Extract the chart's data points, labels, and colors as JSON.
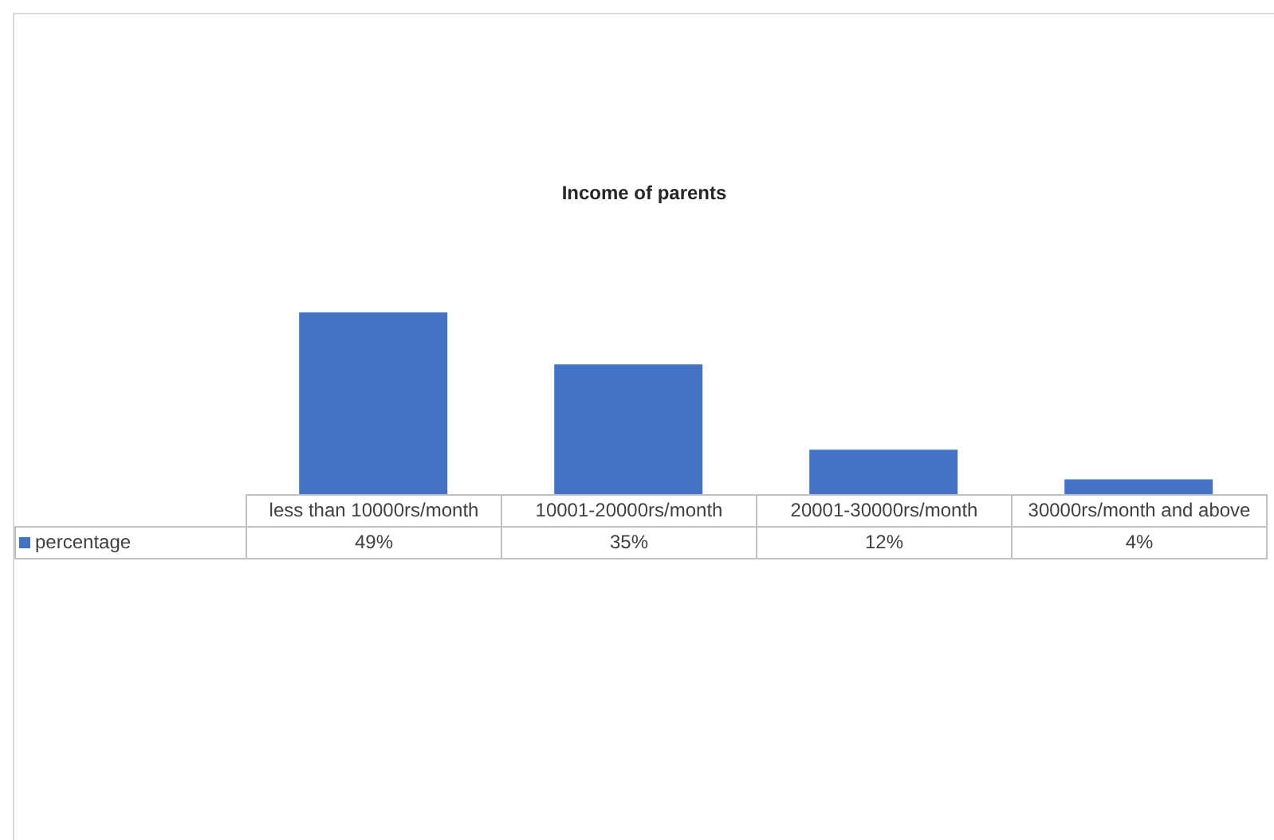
{
  "chart_data": {
    "type": "bar",
    "title": "Income of parents",
    "categories": [
      "less than 10000rs/month",
      "10001-20000rs/month",
      "20001-30000rs/month",
      "30000rs/month and above"
    ],
    "series": [
      {
        "name": "percentage",
        "color": "#4472c4",
        "values": [
          49,
          35,
          12,
          4
        ],
        "value_labels": [
          "49%",
          "35%",
          "12%",
          "4%"
        ]
      }
    ],
    "legend": "bottom left",
    "grid": false
  }
}
